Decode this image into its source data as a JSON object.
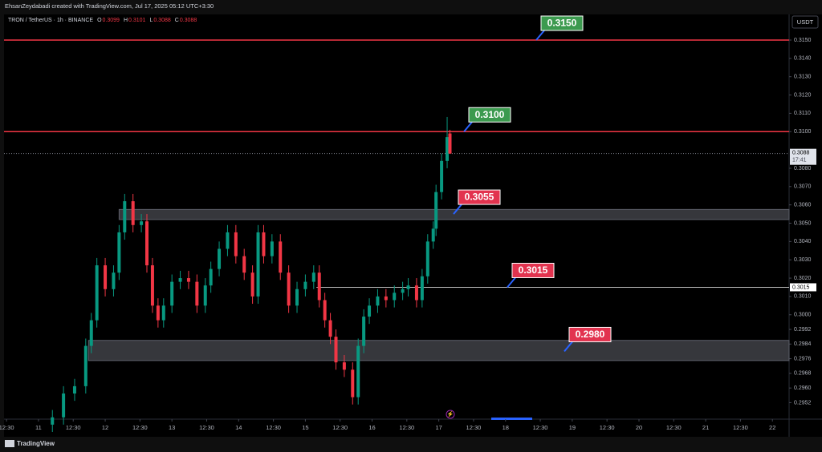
{
  "header": {
    "text": "EhsanZeydabadi created with TradingView.com, Jul 17, 2025 05:12 UTC+3:30"
  },
  "footer": {
    "brand": "TradingView"
  },
  "chart_data": {
    "type": "candlestick",
    "symbol": "TRON / TetherUS · 1h · BINANCE",
    "legend_ohlc": [
      {
        "key": "O",
        "value": 0.3099
      },
      {
        "key": "H",
        "value": 0.3101
      },
      {
        "key": "L",
        "value": 0.3088
      },
      {
        "key": "C",
        "value": 0.3088
      }
    ],
    "currency": "USDT",
    "up_color": "#089981",
    "down_color": "#f23645",
    "x": [
      5,
      9,
      13,
      17,
      19,
      21,
      24,
      27,
      29,
      31,
      34,
      37,
      39,
      41,
      43,
      45,
      48,
      51,
      54,
      57,
      60,
      62,
      65,
      68,
      71,
      74,
      77,
      79,
      81,
      84,
      87,
      90,
      93,
      96,
      99,
      101,
      103,
      105,
      107,
      110,
      113,
      115,
      117,
      119,
      122,
      125,
      128,
      131,
      133,
      136,
      138,
      140,
      142,
      143,
      145,
      147,
      148
    ],
    "open": [
      0.294,
      0.2944,
      0.2957,
      0.2961,
      0.2983,
      0.2997,
      0.3027,
      0.3014,
      0.3023,
      0.3045,
      0.3062,
      0.3049,
      0.3051,
      0.3027,
      0.3005,
      0.2997,
      0.3005,
      0.3018,
      0.302,
      0.3018,
      0.3005,
      0.3016,
      0.3025,
      0.3036,
      0.3045,
      0.3032,
      0.3023,
      0.301,
      0.3045,
      0.3032,
      0.304,
      0.3023,
      0.3005,
      0.3014,
      0.3018,
      0.3023,
      0.3008,
      0.2997,
      0.2988,
      0.2974,
      0.297,
      0.2955,
      0.2983,
      0.2999,
      0.3005,
      0.301,
      0.3008,
      0.3012,
      0.3014,
      0.3016,
      0.3008,
      0.3021,
      0.304,
      0.3047,
      0.3067,
      0.3084,
      0.3099
    ],
    "high": [
      0.2948,
      0.2961,
      0.2965,
      0.2987,
      0.3001,
      0.3031,
      0.3031,
      0.3027,
      0.3049,
      0.3066,
      0.3066,
      0.3055,
      0.3055,
      0.3031,
      0.3009,
      0.3009,
      0.3022,
      0.3024,
      0.3024,
      0.3022,
      0.302,
      0.3029,
      0.304,
      0.3049,
      0.3049,
      0.3036,
      0.3027,
      0.3049,
      0.3049,
      0.3044,
      0.3044,
      0.3027,
      0.3018,
      0.3022,
      0.3027,
      0.3027,
      0.3012,
      0.3001,
      0.2992,
      0.2978,
      0.2974,
      0.2987,
      0.3003,
      0.3009,
      0.3014,
      0.3014,
      0.3016,
      0.3018,
      0.302,
      0.302,
      0.3025,
      0.3044,
      0.3051,
      0.3071,
      0.3088,
      0.3108,
      0.3101
    ],
    "low": [
      0.2936,
      0.294,
      0.2953,
      0.2957,
      0.2979,
      0.2993,
      0.301,
      0.301,
      0.3019,
      0.3041,
      0.3045,
      0.3045,
      0.3023,
      0.3001,
      0.2993,
      0.2993,
      0.3001,
      0.3014,
      0.3014,
      0.3001,
      0.3001,
      0.3012,
      0.3021,
      0.3032,
      0.3028,
      0.3019,
      0.3006,
      0.3006,
      0.3028,
      0.3028,
      0.3019,
      0.3001,
      0.3001,
      0.301,
      0.3014,
      0.3004,
      0.2993,
      0.2984,
      0.297,
      0.2966,
      0.2951,
      0.2951,
      0.2979,
      0.2995,
      0.3001,
      0.3004,
      0.3004,
      0.3008,
      0.301,
      0.3004,
      0.3004,
      0.3017,
      0.3036,
      0.3043,
      0.3063,
      0.308,
      0.3088
    ],
    "close": [
      0.2944,
      0.2957,
      0.2961,
      0.2983,
      0.2997,
      0.3027,
      0.3014,
      0.3023,
      0.3045,
      0.3062,
      0.3049,
      0.3051,
      0.3027,
      0.3005,
      0.2997,
      0.3005,
      0.3018,
      0.302,
      0.3018,
      0.3005,
      0.3016,
      0.3025,
      0.3036,
      0.3045,
      0.3032,
      0.3023,
      0.301,
      0.3045,
      0.3032,
      0.304,
      0.3023,
      0.3005,
      0.3014,
      0.3018,
      0.3023,
      0.3008,
      0.2997,
      0.2988,
      0.2974,
      0.297,
      0.2955,
      0.2983,
      0.2999,
      0.3005,
      0.301,
      0.3008,
      0.3012,
      0.3014,
      0.3016,
      0.3008,
      0.3021,
      0.304,
      0.3047,
      0.3067,
      0.3084,
      0.3097,
      0.3088
    ],
    "xlim": [
      -12.4,
      270
    ],
    "xticks": [
      {
        "value": -11.5,
        "label": "12:30"
      },
      {
        "value": 0,
        "label": "11"
      },
      {
        "value": 12.5,
        "label": "12:30"
      },
      {
        "value": 24,
        "label": "12"
      },
      {
        "value": 36.5,
        "label": "12:30"
      },
      {
        "value": 48,
        "label": "13"
      },
      {
        "value": 60.5,
        "label": "12:30"
      },
      {
        "value": 72,
        "label": "14"
      },
      {
        "value": 84.5,
        "label": "12:30"
      },
      {
        "value": 96,
        "label": "15"
      },
      {
        "value": 108.5,
        "label": "12:30"
      },
      {
        "value": 120,
        "label": "16"
      },
      {
        "value": 132.5,
        "label": "12:30"
      },
      {
        "value": 144,
        "label": "17"
      },
      {
        "value": 156.5,
        "label": "12:30"
      },
      {
        "value": 168,
        "label": "18"
      },
      {
        "value": 180.5,
        "label": "12:30"
      },
      {
        "value": 192,
        "label": "19"
      },
      {
        "value": 204.5,
        "label": "12:30"
      },
      {
        "value": 216,
        "label": "20"
      },
      {
        "value": 228.5,
        "label": "12:30"
      },
      {
        "value": 240,
        "label": "21"
      },
      {
        "value": 252.5,
        "label": "12:30"
      },
      {
        "value": 264,
        "label": "22"
      }
    ],
    "ylim": [
      0.2943,
      0.3164
    ],
    "yticks": [
      {
        "value": 0.315,
        "label": "0.3150"
      },
      {
        "value": 0.314,
        "label": "0.3140"
      },
      {
        "value": 0.313,
        "label": "0.3130"
      },
      {
        "value": 0.312,
        "label": "0.3120"
      },
      {
        "value": 0.311,
        "label": "0.3110"
      },
      {
        "value": 0.31,
        "label": "0.3100"
      },
      {
        "value": 0.308,
        "label": "0.3080"
      },
      {
        "value": 0.307,
        "label": "0.3070"
      },
      {
        "value": 0.306,
        "label": "0.3060"
      },
      {
        "value": 0.305,
        "label": "0.3050"
      },
      {
        "value": 0.304,
        "label": "0.3040"
      },
      {
        "value": 0.303,
        "label": "0.3030"
      },
      {
        "value": 0.302,
        "label": "0.3020"
      },
      {
        "value": 0.301,
        "label": "0.3010"
      },
      {
        "value": 0.3,
        "label": "0.3000"
      },
      {
        "value": 0.2992,
        "label": "0.2992"
      },
      {
        "value": 0.2984,
        "label": "0.2984"
      },
      {
        "value": 0.2976,
        "label": "0.2976"
      },
      {
        "value": 0.2968,
        "label": "0.2968"
      },
      {
        "value": 0.296,
        "label": "0.2960"
      },
      {
        "value": 0.2952,
        "label": "0.2952"
      }
    ],
    "lines": [
      {
        "value": 0.315,
        "color": "#f23645"
      },
      {
        "value": 0.31,
        "color": "#f23645"
      },
      {
        "value": 0.3015,
        "color": "#ffffff",
        "start": 100,
        "axis_label": "0.3015"
      }
    ],
    "zones": [
      {
        "low": 0.3052,
        "high": 0.30575,
        "start": 29
      },
      {
        "low": 0.2975,
        "high": 0.2986,
        "start": 18
      }
    ],
    "callouts": [
      {
        "value": 0.315,
        "label": "0.3150",
        "color": "#3c9a4f"
      },
      {
        "value": 0.31,
        "label": "0.3100",
        "color": "#3c9a4f"
      },
      {
        "value": 0.3055,
        "label": "0.3055",
        "color": "#e2334f"
      },
      {
        "value": 0.3015,
        "label": "0.3015",
        "color": "#e2334f"
      },
      {
        "value": 0.298,
        "label": "0.2980",
        "color": "#e2334f"
      }
    ],
    "last_price": {
      "value": 0.3088,
      "label": "0.3088",
      "countdown": "17:41"
    }
  }
}
